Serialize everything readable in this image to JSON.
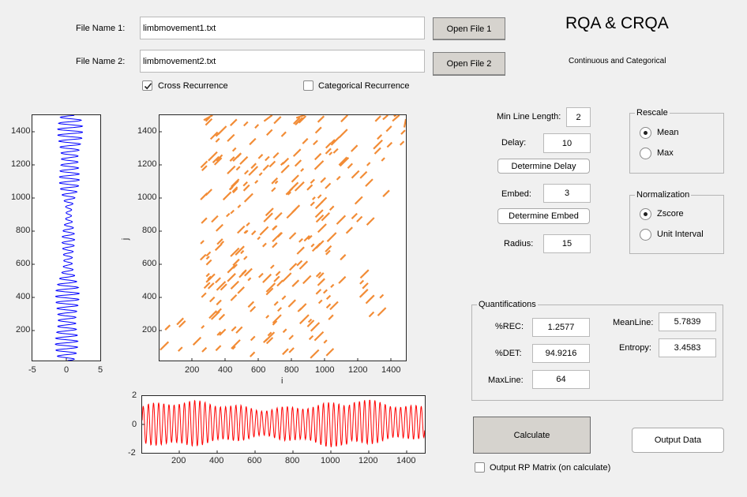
{
  "title": "RQA & CRQA",
  "subtitle": "Continuous and Categorical",
  "file1": {
    "label": "File Name 1:",
    "value": "limbmovement1.txt",
    "button": "Open File 1"
  },
  "file2": {
    "label": "File Name 2:",
    "value": "limbmovement2.txt",
    "button": "Open File 2"
  },
  "cross_recurrence": {
    "label": "Cross Recurrence",
    "checked": true
  },
  "categorical_recurrence": {
    "label": "Categorical Recurrence",
    "checked": false
  },
  "params": {
    "min_line_label": "Min Line Length:",
    "min_line_value": "2",
    "delay_label": "Delay:",
    "delay_value": "10",
    "determine_delay": "Determine Delay",
    "embed_label": "Embed:",
    "embed_value": "3",
    "determine_embed": "Determine Embed",
    "radius_label": "Radius:",
    "radius_value": "15"
  },
  "rescale": {
    "title": "Rescale",
    "options": [
      "Mean",
      "Max"
    ],
    "selected": "Mean"
  },
  "normalization": {
    "title": "Normalization",
    "options": [
      "Zscore",
      "Unit Interval"
    ],
    "selected": "Zscore"
  },
  "quantifications": {
    "title": "Quantifications",
    "rec_label": "%REC:",
    "rec_value": "1.2577",
    "det_label": "%DET:",
    "det_value": "94.9216",
    "maxline_label": "MaxLine:",
    "maxline_value": "64",
    "meanline_label": "MeanLine:",
    "meanline_value": "5.7839",
    "entropy_label": "Entropy:",
    "entropy_value": "3.4583"
  },
  "calculate_button": "Calculate",
  "output_data_button": "Output Data",
  "output_rp": {
    "label": "Output RP Matrix (on calculate)",
    "checked": false
  },
  "colors": {
    "series1": "#0000ff",
    "series2": "#ff0000",
    "recurrence": "#f28c36"
  },
  "chart_data": [
    {
      "type": "line",
      "orientation": "vertical",
      "color": "#0000ff",
      "xlim": [
        -5,
        5
      ],
      "ylim": [
        1,
        1500
      ],
      "xticks": [
        "-5",
        "0",
        "5"
      ],
      "yticks": [
        "200",
        "400",
        "600",
        "800",
        "1000",
        "1200",
        "1400"
      ]
    },
    {
      "type": "scatter",
      "xlabel": "i",
      "ylabel": "j",
      "color": "#f28c36",
      "xlim": [
        1,
        1500
      ],
      "ylim": [
        1,
        1500
      ],
      "xticks": [
        "200",
        "400",
        "600",
        "800",
        "1000",
        "1200",
        "1400"
      ],
      "yticks": [
        "200",
        "400",
        "600",
        "800",
        "1000",
        "1200",
        "1400"
      ]
    },
    {
      "type": "line",
      "color": "#ff0000",
      "xlim": [
        1,
        1500
      ],
      "ylim": [
        -2,
        2
      ],
      "xticks": [
        "200",
        "400",
        "600",
        "800",
        "1000",
        "1200",
        "1400"
      ],
      "yticks": [
        "-2",
        "0",
        "2"
      ]
    }
  ]
}
